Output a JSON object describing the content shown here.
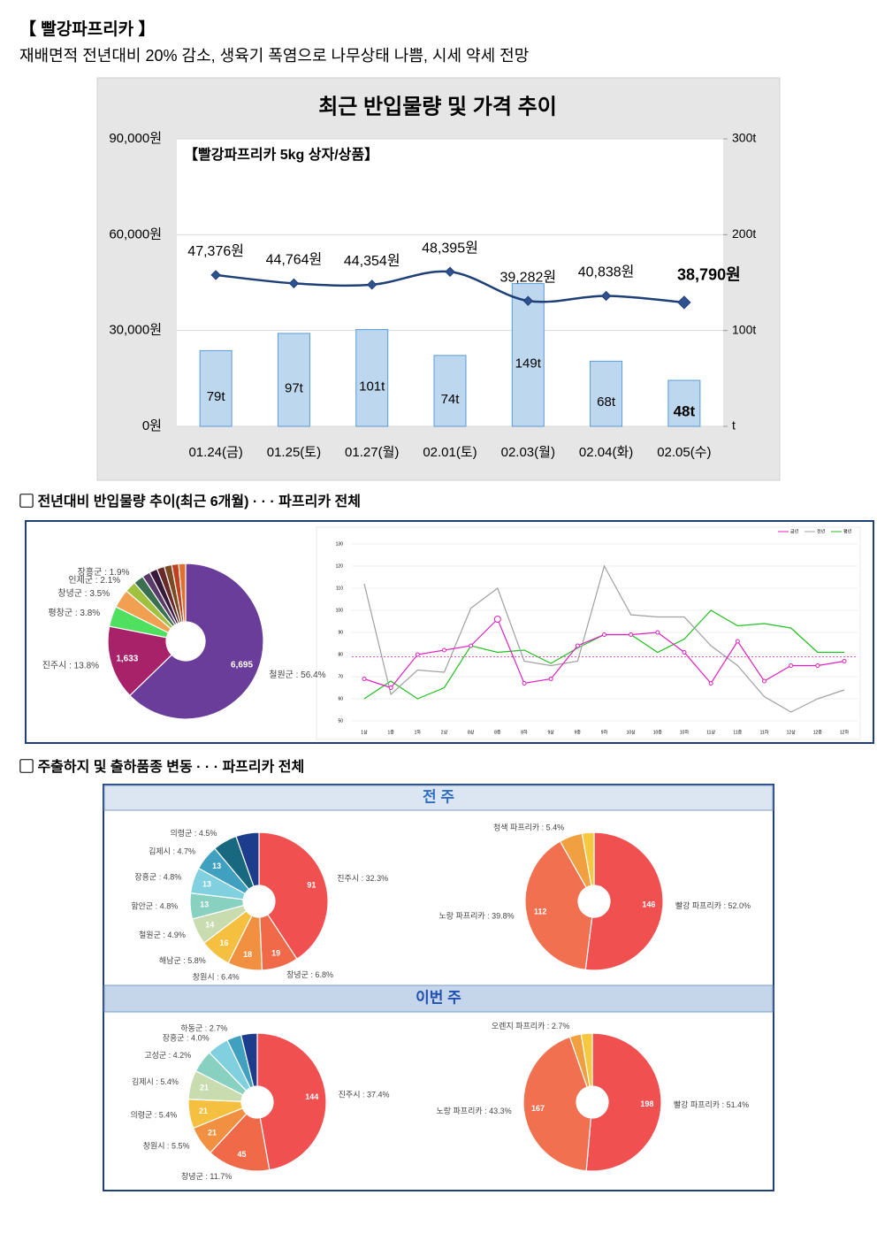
{
  "header": {
    "title": "【 빨강파프리카 】",
    "subtitle": "재배면적 전년대비 20% 감소, 생육기 폭염으로 나무상태 나쁨, 시세 약세 전망"
  },
  "sections": [
    {
      "heading": "▢ 전년대비 반입물량 추이(최근 6개월)  · · · 파프리카 전체"
    },
    {
      "heading": "▢ 주출하지 및 출하품종 변동 · · · 파프리카 전체",
      "panels": [
        "전 주",
        "이번 주"
      ]
    }
  ],
  "chart_data": [
    {
      "type": "combo",
      "title": "최근 반입물량 및 가격 추이",
      "subtitle": "【빨강파프리카 5kg 상자/상품】",
      "categories": [
        "01.24(금)",
        "01.25(토)",
        "01.27(월)",
        "02.01(토)",
        "02.03(월)",
        "02.04(화)",
        "02.05(수)"
      ],
      "series": [
        {
          "kind": "line",
          "color": "#1f3f77",
          "values": [
            47376,
            44764,
            44354,
            48395,
            39282,
            40838,
            38790
          ],
          "value_labels": [
            "47,376원",
            "44,764원",
            "44,354원",
            "48,395원",
            "39,282원",
            "40,838원",
            "38,790원"
          ]
        },
        {
          "kind": "bar",
          "axis": "y2",
          "color": "#bdd7ee",
          "values": [
            79,
            97,
            101,
            74,
            149,
            68,
            48
          ],
          "value_labels": [
            "79t",
            "97t",
            "101t",
            "74t",
            "149t",
            "68t",
            "48t"
          ]
        }
      ],
      "ylim": [
        0,
        90000
      ],
      "yticks": [
        {
          "value": 0,
          "label": "0원"
        },
        {
          "value": 30000,
          "label": "30,000원"
        },
        {
          "value": 60000,
          "label": "60,000원"
        },
        {
          "value": 90000,
          "label": "90,000원"
        }
      ],
      "y2lim": [
        0,
        300
      ],
      "y2ticks": [
        {
          "value": 0,
          "label": "t"
        },
        {
          "value": 100,
          "label": "100t"
        },
        {
          "value": 200,
          "label": "200t"
        },
        {
          "value": 300,
          "label": "300t"
        }
      ],
      "grid": true,
      "highlight_last": true
    },
    {
      "type": "donut",
      "values": [
        56.4,
        13.8,
        3.8,
        3.5,
        2.1,
        1.9,
        1.5,
        1.5,
        1.4,
        1.4,
        1.3,
        1.3
      ],
      "value_labels": [
        "철원군 : 56.4%",
        "진주시 : 13.8%",
        "평창군 : 3.8%",
        "창녕군 : 3.5%",
        "인제군 : 2.1%",
        "장흥군 : 1.9%",
        null,
        null,
        null,
        null,
        null,
        null
      ],
      "counts": [
        6695,
        1633,
        null,
        null,
        null,
        null,
        null,
        null,
        null,
        null,
        null,
        null
      ],
      "count_labels": [
        "6,695",
        "1,633",
        null,
        null,
        null,
        null,
        null,
        null,
        null,
        null,
        null,
        null
      ],
      "colors": [
        "#6a3d9a",
        "#a8226a",
        "#50e060",
        "#f0a050",
        "#a0c040",
        "#3a7050",
        "#5a3a6a",
        "#3a1a3a",
        "#6a2a2a",
        "#7a4a20",
        "#c04020",
        "#e07030"
      ]
    },
    {
      "type": "line",
      "categories": [
        "1상",
        "1중",
        "1하",
        "2상",
        "8상",
        "8중",
        "8하",
        "9상",
        "9중",
        "9하",
        "10상",
        "10중",
        "10하",
        "11상",
        "11중",
        "11하",
        "12상",
        "12중",
        "12하"
      ],
      "series": [
        {
          "name": "금년",
          "color": "#e020c0",
          "marker": true,
          "values": [
            69,
            65,
            80,
            82,
            84,
            96,
            67,
            69,
            84,
            89,
            89,
            90,
            81,
            67,
            86,
            68,
            75,
            75,
            77
          ]
        },
        {
          "name": "전년",
          "color": "#a0a0a0",
          "values": [
            112,
            62,
            73,
            72,
            101,
            110,
            77,
            75,
            77,
            120,
            98,
            97,
            97,
            84,
            75,
            61,
            54,
            60,
            64
          ]
        },
        {
          "name": "평년",
          "color": "#20c020",
          "values": [
            60,
            68,
            60,
            65,
            84,
            81,
            82,
            76,
            83,
            89,
            89,
            81,
            87,
            100,
            93,
            94,
            92,
            81,
            81
          ]
        }
      ],
      "ylim": [
        50,
        130
      ],
      "yticks": [
        50,
        60,
        70,
        80,
        90,
        100,
        110,
        120,
        130
      ],
      "grid": true,
      "reference_line": 79,
      "reference_color": "#e020c0",
      "legend": "top-right"
    },
    {
      "type": "donut",
      "values": [
        32.3,
        6.8,
        6.4,
        5.8,
        4.9,
        4.8,
        4.8,
        4.7,
        4.5,
        4.3
      ],
      "value_labels": [
        "진주시 : 32.3%",
        "창녕군 : 6.8%",
        "창원시 : 6.4%",
        "해남군 : 5.8%",
        "철원군 : 4.9%",
        "함안군 : 4.8%",
        "장흥군 : 4.8%",
        "김제시 : 4.7%",
        "의령군 : 4.5%",
        null
      ],
      "counts": [
        91,
        19,
        18,
        16,
        14,
        13,
        13,
        13,
        null,
        null
      ],
      "colors": [
        "#f05050",
        "#f06a4a",
        "#f09040",
        "#f5c040",
        "#c8dcb0",
        "#88d0c0",
        "#80d0e0",
        "#40a0c0",
        "#186880",
        "#1e3c8c"
      ]
    },
    {
      "type": "donut",
      "values": [
        52.0,
        39.8,
        5.4,
        2.8
      ],
      "value_labels": [
        "빨강 파프리카 : 52.0%",
        "노랑 파프리카 : 39.8%",
        "청색 파프리카 : 5.4%",
        null
      ],
      "counts": [
        146,
        112,
        null,
        null
      ],
      "colors": [
        "#f05050",
        "#f07050",
        "#f0a040",
        "#f5c840"
      ]
    },
    {
      "type": "donut",
      "values": [
        37.4,
        11.7,
        5.5,
        5.4,
        5.4,
        4.2,
        4.0,
        2.7,
        3.0
      ],
      "value_labels": [
        "진주시 : 37.4%",
        "창녕군 : 11.7%",
        "창원시 : 5.5%",
        "의령군 : 5.4%",
        "김제시 : 5.4%",
        "고성군 : 4.2%",
        "장흥군 : 4.0%",
        "하동군 : 2.7%",
        null
      ],
      "counts": [
        144,
        45,
        21,
        21,
        21,
        null,
        null,
        null,
        null
      ],
      "colors": [
        "#f05050",
        "#f06a4a",
        "#f09040",
        "#f5c040",
        "#c8dcb0",
        "#88d0c0",
        "#80d0e0",
        "#40a0c0",
        "#1e3c8c"
      ]
    },
    {
      "type": "donut",
      "values": [
        51.4,
        43.3,
        2.7,
        2.6
      ],
      "value_labels": [
        "빨강 파프리카 : 51.4%",
        "노랑 파프리카 : 43.3%",
        "오렌지 파프리카 : 2.7%",
        null
      ],
      "counts": [
        198,
        167,
        null,
        null
      ],
      "colors": [
        "#f05050",
        "#f07050",
        "#f0a040",
        "#f5c840"
      ]
    }
  ]
}
